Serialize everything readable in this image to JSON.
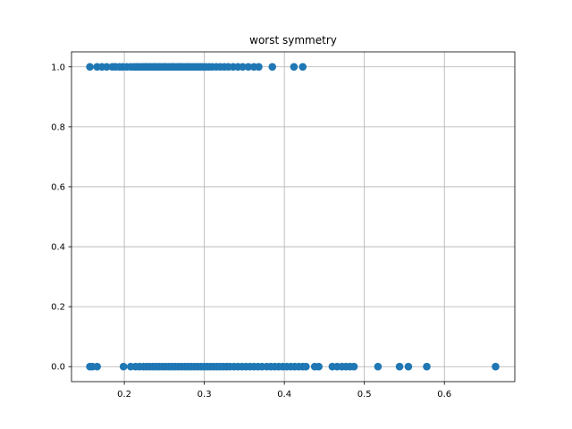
{
  "chart_data": {
    "type": "scatter",
    "title": "worst symmetry",
    "xlabel": "",
    "ylabel": "",
    "xlim": [
      0.134,
      0.688
    ],
    "ylim": [
      -0.05,
      1.05
    ],
    "xticks": [
      0.2,
      0.3,
      0.4,
      0.5,
      0.6
    ],
    "xtick_labels": [
      "0.2",
      "0.3",
      "0.4",
      "0.5",
      "0.6"
    ],
    "yticks": [
      0.0,
      0.2,
      0.4,
      0.6,
      0.8,
      1.0
    ],
    "ytick_labels": [
      "0.0",
      "0.2",
      "0.4",
      "0.6",
      "0.8",
      "1.0"
    ],
    "grid": true,
    "marker_color": "#1f77b4",
    "series": [
      {
        "y": 1.0,
        "x": [
          0.157,
          0.166,
          0.172,
          0.178,
          0.185,
          0.189,
          0.194,
          0.198,
          0.203,
          0.208,
          0.212,
          0.215,
          0.218,
          0.221,
          0.224,
          0.226,
          0.228,
          0.231,
          0.233,
          0.236,
          0.238,
          0.24,
          0.243,
          0.245,
          0.248,
          0.25,
          0.252,
          0.255,
          0.258,
          0.26,
          0.262,
          0.265,
          0.268,
          0.27,
          0.272,
          0.275,
          0.278,
          0.28,
          0.283,
          0.286,
          0.289,
          0.292,
          0.295,
          0.298,
          0.302,
          0.306,
          0.31,
          0.315,
          0.32,
          0.325,
          0.33,
          0.336,
          0.342,
          0.348,
          0.355,
          0.362,
          0.368,
          0.385,
          0.412,
          0.423
        ]
      },
      {
        "y": 0.0,
        "x": [
          0.157,
          0.16,
          0.166,
          0.199,
          0.208,
          0.214,
          0.219,
          0.224,
          0.228,
          0.232,
          0.236,
          0.24,
          0.244,
          0.248,
          0.252,
          0.256,
          0.26,
          0.264,
          0.268,
          0.272,
          0.276,
          0.28,
          0.284,
          0.288,
          0.292,
          0.296,
          0.3,
          0.304,
          0.308,
          0.312,
          0.316,
          0.32,
          0.324,
          0.328,
          0.332,
          0.337,
          0.342,
          0.347,
          0.352,
          0.357,
          0.362,
          0.367,
          0.372,
          0.378,
          0.383,
          0.388,
          0.393,
          0.398,
          0.403,
          0.408,
          0.413,
          0.418,
          0.423,
          0.427,
          0.438,
          0.443,
          0.46,
          0.466,
          0.472,
          0.477,
          0.482,
          0.487,
          0.517,
          0.544,
          0.555,
          0.578,
          0.664
        ]
      }
    ]
  }
}
